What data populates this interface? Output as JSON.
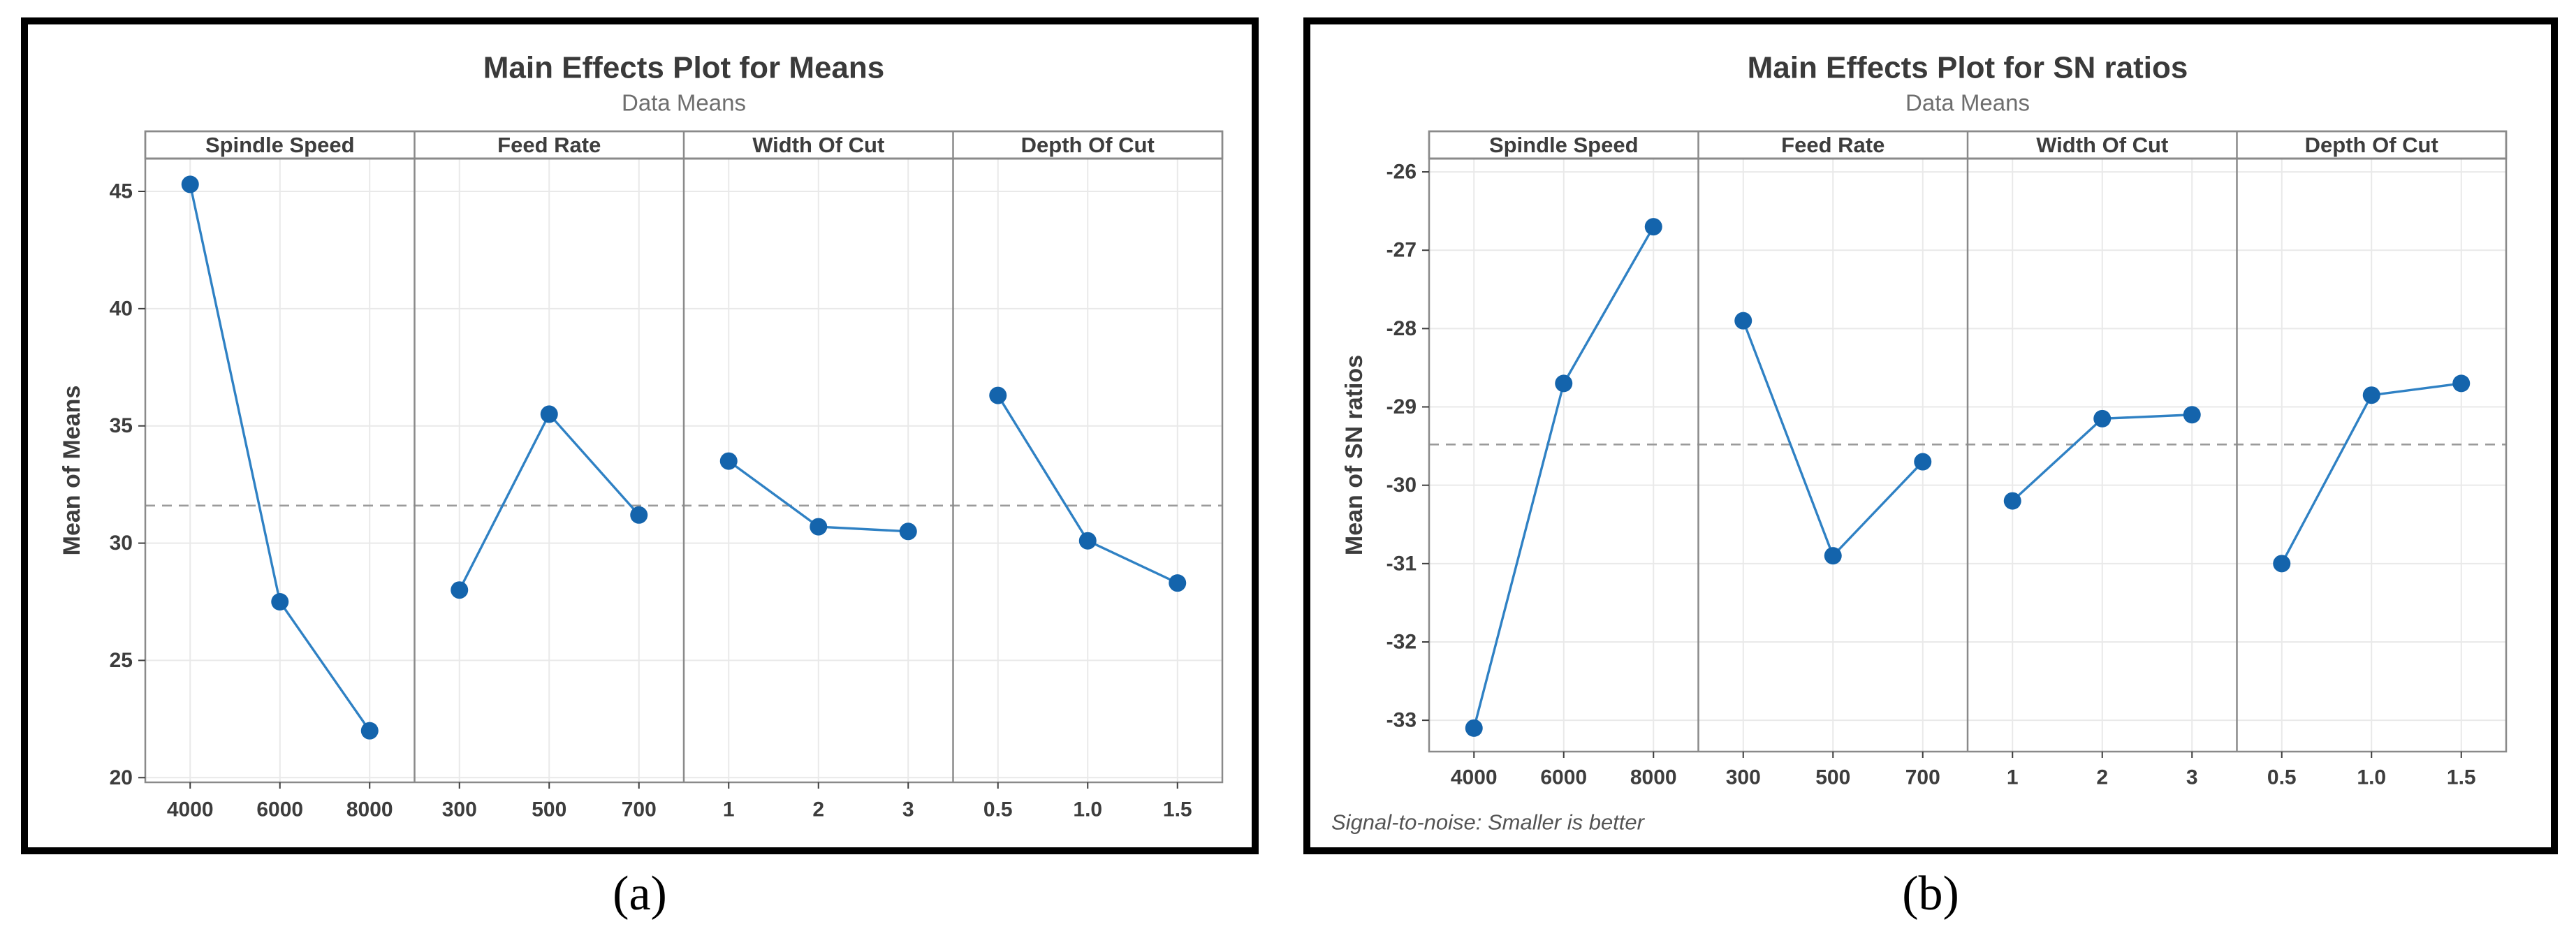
{
  "colors": {
    "marker": "#1464ac",
    "line": "#2f81c4",
    "grid": "#e9e9e9",
    "frame": "#8a8a8a",
    "reference_dash": "#9b9b9b",
    "title_text": "#3a3a3a",
    "subtitle_text": "#6e6e6e",
    "tick_text": "#3d3d3d",
    "footnote_text": "#545454",
    "figure_border": "#000000",
    "background": "#ffffff"
  },
  "chart_data": [
    {
      "type": "line",
      "title": "Main Effects Plot for Means",
      "subtitle": "Data Means",
      "ylabel": "Mean of Means",
      "yticks": [
        45,
        40,
        35,
        30,
        25,
        20
      ],
      "ylim": [
        19.8,
        46.4
      ],
      "reference_line": 31.6,
      "grid": true,
      "footnote": "",
      "caption": "(a)",
      "panels": [
        {
          "label": "Spindle Speed",
          "categories": [
            "4000",
            "6000",
            "8000"
          ],
          "values": [
            45.3,
            27.5,
            22.0
          ]
        },
        {
          "label": "Feed Rate",
          "categories": [
            "300",
            "500",
            "700"
          ],
          "values": [
            28.0,
            35.5,
            31.2
          ]
        },
        {
          "label": "Width Of Cut",
          "categories": [
            "1",
            "2",
            "3"
          ],
          "values": [
            33.5,
            30.7,
            30.5
          ]
        },
        {
          "label": "Depth Of Cut",
          "categories": [
            "0.5",
            "1.0",
            "1.5"
          ],
          "values": [
            36.3,
            30.1,
            28.3
          ]
        }
      ]
    },
    {
      "type": "line",
      "title": "Main Effects Plot for SN ratios",
      "subtitle": "Data Means",
      "ylabel": "Mean of SN ratios",
      "yticks": [
        -26,
        -27,
        -28,
        -29,
        -30,
        -31,
        -32,
        -33
      ],
      "ylim": [
        -33.4,
        -25.83
      ],
      "reference_line": -29.48,
      "grid": true,
      "footnote": "Signal-to-noise: Smaller is better",
      "caption": "(b)",
      "panels": [
        {
          "label": "Spindle Speed",
          "categories": [
            "4000",
            "6000",
            "8000"
          ],
          "values": [
            -33.1,
            -28.7,
            -26.7
          ]
        },
        {
          "label": "Feed Rate",
          "categories": [
            "300",
            "500",
            "700"
          ],
          "values": [
            -27.9,
            -30.9,
            -29.7
          ]
        },
        {
          "label": "Width Of Cut",
          "categories": [
            "1",
            "2",
            "3"
          ],
          "values": [
            -30.2,
            -29.15,
            -29.1
          ]
        },
        {
          "label": "Depth Of Cut",
          "categories": [
            "0.5",
            "1.0",
            "1.5"
          ],
          "values": [
            -31.0,
            -28.85,
            -28.7
          ]
        }
      ]
    }
  ]
}
